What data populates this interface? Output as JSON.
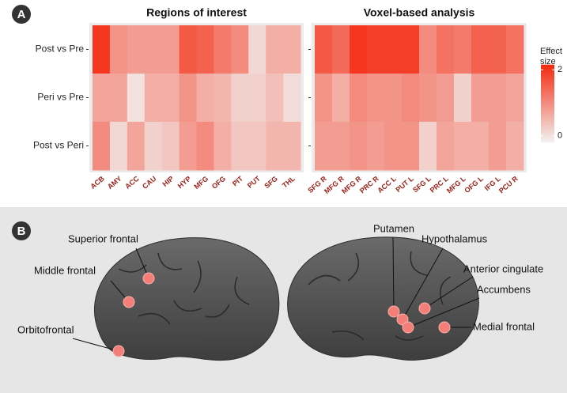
{
  "panel_labels": [
    "A",
    "B"
  ],
  "color_scale": {
    "title": "Effect size",
    "lim": [
      -0.2,
      2.15
    ],
    "ticks": [
      0,
      2
    ],
    "colors": [
      "#f2f2f2",
      "#f42a10"
    ]
  },
  "chart_data": [
    {
      "type": "heatmap",
      "title": "Regions of interest",
      "x": [
        "ACB",
        "AMY",
        "ACC",
        "CAU",
        "HIP",
        "HYP",
        "MFG",
        "OFG",
        "PIT",
        "PUT",
        "SFG",
        "THL"
      ],
      "y": [
        "Post vs Pre",
        "Peri vs Pre",
        "Post vs Peri"
      ],
      "values": [
        [
          2.0,
          0.9,
          0.8,
          0.8,
          0.8,
          1.6,
          1.5,
          1.2,
          1.0,
          0.1,
          0.6,
          0.6
        ],
        [
          0.7,
          0.7,
          0.0,
          0.6,
          0.6,
          0.9,
          0.6,
          0.5,
          0.2,
          0.2,
          0.4,
          0.05
        ],
        [
          1.0,
          0.1,
          0.7,
          0.2,
          0.3,
          0.8,
          1.0,
          0.6,
          0.3,
          0.3,
          0.5,
          0.5
        ]
      ]
    },
    {
      "type": "heatmap",
      "title": "Voxel-based analysis",
      "x": [
        "SFG R",
        "MFG R",
        "MFG R",
        "PRC R",
        "ACC L",
        "PUT L",
        "SFG L",
        "PRC L",
        "MFG L",
        "OFG L",
        "IFG L",
        "PCU R"
      ],
      "values": [
        [
          1.6,
          1.4,
          2.0,
          1.9,
          1.9,
          1.9,
          1.0,
          1.3,
          1.2,
          1.5,
          1.5,
          1.3
        ],
        [
          0.9,
          0.6,
          1.0,
          0.9,
          0.9,
          1.0,
          0.9,
          0.8,
          0.2,
          0.8,
          0.8,
          0.7
        ],
        [
          0.8,
          0.8,
          0.9,
          0.8,
          0.9,
          0.9,
          0.2,
          0.7,
          0.6,
          0.6,
          0.8,
          0.6
        ]
      ]
    }
  ],
  "brain_labels": [
    "Superior frontal",
    "Middle frontal",
    "Orbitofrontal",
    "Putamen",
    "Hypothalamus",
    "Anterior cingulate",
    "Accumbens",
    "Medial frontal"
  ]
}
